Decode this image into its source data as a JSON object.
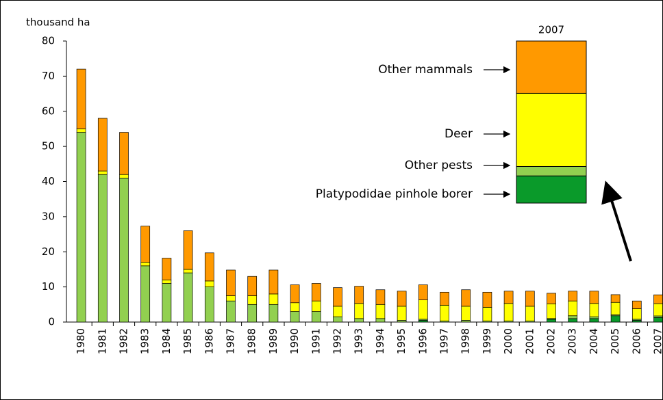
{
  "chart_data": {
    "type": "stacked-bar",
    "y_label": "thousand ha",
    "categories": [
      "1980",
      "1981",
      "1982",
      "1983",
      "1984",
      "1985",
      "1986",
      "1987",
      "1988",
      "1989",
      "1990",
      "1991",
      "1992",
      "1993",
      "1994",
      "1995",
      "1996",
      "1997",
      "1998",
      "1999",
      "2000",
      "2001",
      "2002",
      "2003",
      "2004",
      "2005",
      "2006",
      "2007"
    ],
    "series": [
      {
        "name": "Platypodidae pinhole borer",
        "color": "#0a9a2a",
        "values": [
          0,
          0,
          0,
          0,
          0,
          0,
          0,
          0,
          0,
          0,
          0,
          0,
          0,
          0,
          0,
          0,
          0.5,
          0,
          0,
          0,
          0,
          0,
          0.8,
          1,
          1,
          1.8,
          0.5,
          1.3
        ]
      },
      {
        "name": "Other pests",
        "color": "#92d050",
        "values": [
          54,
          42,
          41,
          16,
          11,
          14,
          10,
          6,
          5,
          5,
          3,
          3,
          1.5,
          1,
          1,
          0.5,
          0.3,
          0.3,
          0.5,
          0.3,
          0.3,
          0.3,
          0.2,
          0.8,
          0.5,
          0.3,
          0.3,
          0.45
        ]
      },
      {
        "name": "Deer",
        "color": "#ffff00",
        "values": [
          1,
          1,
          1,
          1,
          1,
          1,
          1.7,
          1.5,
          2.5,
          3,
          2.5,
          3,
          3,
          4.3,
          4,
          4,
          5.5,
          4.5,
          4,
          3.9,
          5,
          4.2,
          4.2,
          4.2,
          3.8,
          3.5,
          3,
          3.5
        ]
      },
      {
        "name": "Other mammals",
        "color": "#ff9900",
        "values": [
          17,
          15,
          12,
          10.3,
          6.2,
          11,
          8,
          7.3,
          5.5,
          6.8,
          5.1,
          5,
          5.3,
          4.9,
          4.2,
          4.3,
          4.3,
          3.7,
          4.7,
          4.3,
          3.5,
          4.3,
          3,
          2.8,
          3.5,
          2.2,
          2.2,
          2.5
        ]
      }
    ],
    "ylim": [
      0,
      80
    ],
    "yticks": [
      0,
      10,
      20,
      30,
      40,
      50,
      60,
      70,
      80
    ],
    "grid": false
  }
}
